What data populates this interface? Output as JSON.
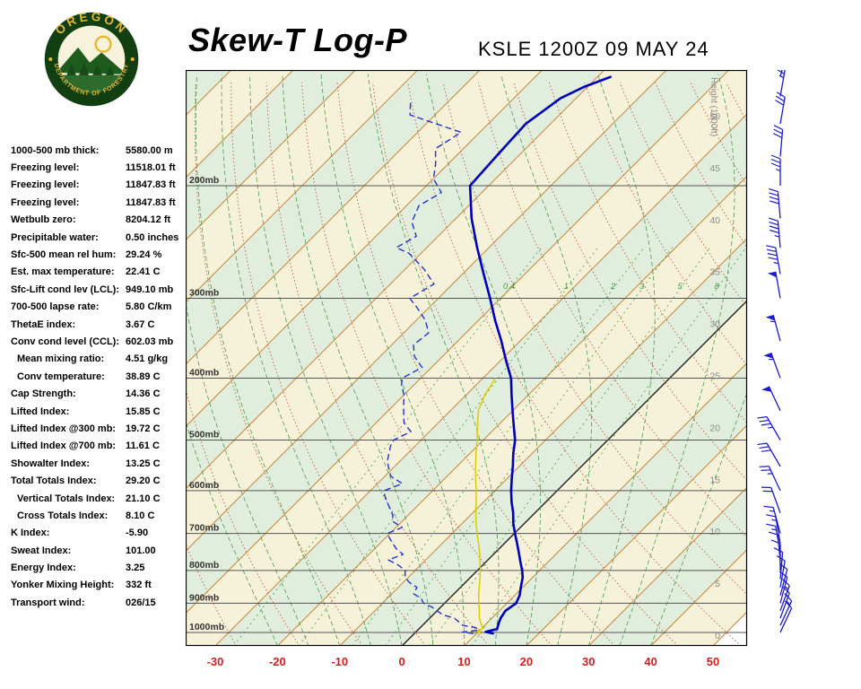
{
  "logo": {
    "org": "OREGON",
    "dept": "DEPARTMENT OF FORESTRY"
  },
  "header": {
    "title": "Skew-T Log-P",
    "station": "KSLE 1200Z 09 MAY 24"
  },
  "indices": [
    {
      "label": "1000-500 mb thick:",
      "value": "5580.00 m",
      "indent": false
    },
    {
      "label": "Freezing level:",
      "value": "11518.01 ft",
      "indent": false
    },
    {
      "label": "Freezing level:",
      "value": "11847.83 ft",
      "indent": false
    },
    {
      "label": "Freezing level:",
      "value": "11847.83 ft",
      "indent": false
    },
    {
      "label": "Wetbulb zero:",
      "value": "8204.12 ft",
      "indent": false
    },
    {
      "label": "Precipitable water:",
      "value": "0.50 inches",
      "indent": false
    },
    {
      "label": "Sfc-500 mean rel hum:",
      "value": "29.24 %",
      "indent": false
    },
    {
      "label": "Est. max temperature:",
      "value": "22.41 C",
      "indent": false
    },
    {
      "label": "Sfc-Lift cond lev (LCL):",
      "value": "949.10 mb",
      "indent": false
    },
    {
      "label": "700-500 lapse rate:",
      "value": "5.80 C/km",
      "indent": false
    },
    {
      "label": "ThetaE index:",
      "value": "3.67 C",
      "indent": false
    },
    {
      "label": "Conv cond level (CCL):",
      "value": "602.03 mb",
      "indent": false
    },
    {
      "label": "Mean mixing ratio:",
      "value": "4.51 g/kg",
      "indent": true
    },
    {
      "label": "Conv temperature:",
      "value": "38.89 C",
      "indent": true
    },
    {
      "label": "Cap Strength:",
      "value": "14.36 C",
      "indent": false
    },
    {
      "label": "Lifted Index:",
      "value": "15.85 C",
      "indent": false
    },
    {
      "label": "Lifted Index @300 mb:",
      "value": "19.72 C",
      "indent": false
    },
    {
      "label": "Lifted Index @700 mb:",
      "value": "11.61 C",
      "indent": false
    },
    {
      "label": "Showalter Index:",
      "value": "13.25 C",
      "indent": false
    },
    {
      "label": "Total Totals Index:",
      "value": "29.20 C",
      "indent": false
    },
    {
      "label": "Vertical Totals Index:",
      "value": "21.10 C",
      "indent": true
    },
    {
      "label": "Cross Totals Index:",
      "value": "8.10 C",
      "indent": true
    },
    {
      "label": "K Index:",
      "value": "-5.90",
      "indent": false
    },
    {
      "label": "Sweat Index:",
      "value": "101.00",
      "indent": false
    },
    {
      "label": "Energy Index:",
      "value": "3.25",
      "indent": false
    },
    {
      "label": "Yonker Mixing Height:",
      "value": "332 ft",
      "indent": false
    },
    {
      "label": "Transport wind:",
      "value": "026/15",
      "indent": false
    }
  ],
  "chart_data": {
    "type": "skewt-log-p",
    "station": "KSLE",
    "valid_time": "1200Z 09 MAY 24",
    "pressure_levels_mb": [
      200,
      300,
      400,
      500,
      600,
      700,
      800,
      900,
      1000
    ],
    "temp_axis_c": [
      -30,
      -20,
      -10,
      0,
      10,
      20,
      30,
      40,
      50
    ],
    "height_axis_kft": [
      0,
      5,
      10,
      15,
      20,
      25,
      30,
      35,
      40,
      45,
      50
    ],
    "height_axis_label": "Height (1000ft)",
    "mixing_ratio_lines_gkg": [
      0.4,
      1,
      2,
      3,
      5,
      8
    ],
    "isotherm_step_c": 10,
    "colors": {
      "band_cream": "#f6f2da",
      "band_green": "#e2eedd",
      "isotherm": "#c8863c",
      "isotherm_zero": "#222222",
      "dry_adiabat": "#bb5f3f",
      "moist_adiabat": "#4d9a4d",
      "mixing_ratio": "#3da03d",
      "isobar": "#555555",
      "temperature": "#0000bb",
      "dewpoint": "#2233cc",
      "wetbulb": "#ddcc00",
      "temp_labels": "#cc2222",
      "height_labels": "#8a8a8a",
      "pressure_labels": "#333333",
      "wind_barbs": "#1a1acc"
    },
    "temperature_profile": [
      [
        1004,
        12.8
      ],
      [
        998,
        11.2
      ],
      [
        988,
        12.6
      ],
      [
        970,
        12.0
      ],
      [
        950,
        11.4
      ],
      [
        925,
        11.0
      ],
      [
        900,
        11.5
      ],
      [
        875,
        10.8
      ],
      [
        850,
        9.7
      ],
      [
        820,
        8.4
      ],
      [
        800,
        7.2
      ],
      [
        775,
        5.5
      ],
      [
        750,
        3.8
      ],
      [
        725,
        2.0
      ],
      [
        700,
        0.1
      ],
      [
        675,
        -1.8
      ],
      [
        650,
        -3.5
      ],
      [
        625,
        -5.5
      ],
      [
        600,
        -7.4
      ],
      [
        575,
        -9.2
      ],
      [
        550,
        -11.0
      ],
      [
        525,
        -13.0
      ],
      [
        500,
        -14.9
      ],
      [
        475,
        -17.4
      ],
      [
        450,
        -20.0
      ],
      [
        425,
        -22.7
      ],
      [
        400,
        -25.5
      ],
      [
        375,
        -29.2
      ],
      [
        350,
        -33.0
      ],
      [
        325,
        -37.3
      ],
      [
        300,
        -41.7
      ],
      [
        275,
        -46.6
      ],
      [
        250,
        -51.9
      ],
      [
        225,
        -57.5
      ],
      [
        200,
        -63.0
      ],
      [
        180,
        -63.5
      ],
      [
        160,
        -64.0
      ],
      [
        146,
        -62.5
      ],
      [
        140,
        -60.5
      ],
      [
        135,
        -57.8
      ]
    ],
    "dewpoint_profile": [
      [
        1004,
        9.5
      ],
      [
        999,
        7.5
      ],
      [
        992,
        9.8
      ],
      [
        983,
        9.0
      ],
      [
        975,
        6.5
      ],
      [
        960,
        5.0
      ],
      [
        950,
        4.0
      ],
      [
        938,
        1.5
      ],
      [
        925,
        0.0
      ],
      [
        912,
        -1.5
      ],
      [
        900,
        -3.4
      ],
      [
        885,
        -4.5
      ],
      [
        870,
        -6.5
      ],
      [
        850,
        -7.0
      ],
      [
        835,
        -9.0
      ],
      [
        820,
        -10.5
      ],
      [
        800,
        -11.6
      ],
      [
        785,
        -13.5
      ],
      [
        770,
        -16.0
      ],
      [
        755,
        -14.5
      ],
      [
        740,
        -16.5
      ],
      [
        725,
        -18.0
      ],
      [
        710,
        -19.5
      ],
      [
        700,
        -20.4
      ],
      [
        685,
        -19.0
      ],
      [
        670,
        -21.5
      ],
      [
        655,
        -22.5
      ],
      [
        640,
        -24.0
      ],
      [
        625,
        -25.5
      ],
      [
        610,
        -27.0
      ],
      [
        600,
        -27.8
      ],
      [
        585,
        -26.0
      ],
      [
        570,
        -29.0
      ],
      [
        555,
        -30.5
      ],
      [
        540,
        -32.0
      ],
      [
        525,
        -33.0
      ],
      [
        510,
        -34.0
      ],
      [
        500,
        -34.4
      ],
      [
        485,
        -33.0
      ],
      [
        470,
        -35.5
      ],
      [
        455,
        -37.0
      ],
      [
        440,
        -38.5
      ],
      [
        425,
        -40.0
      ],
      [
        410,
        -42.0
      ],
      [
        400,
        -43.0
      ],
      [
        385,
        -41.5
      ],
      [
        370,
        -44.5
      ],
      [
        355,
        -46.5
      ],
      [
        340,
        -46.0
      ],
      [
        325,
        -48.5
      ],
      [
        310,
        -52.0
      ],
      [
        300,
        -54.6
      ],
      [
        285,
        -53.0
      ],
      [
        270,
        -57.0
      ],
      [
        255,
        -62.0
      ],
      [
        250,
        -64.9
      ],
      [
        240,
        -63.5
      ],
      [
        228,
        -66.5
      ],
      [
        215,
        -68.0
      ],
      [
        205,
        -66.5
      ],
      [
        195,
        -70.0
      ],
      [
        185,
        -72.0
      ],
      [
        175,
        -74.5
      ],
      [
        165,
        -73.0
      ],
      [
        155,
        -84.0
      ],
      [
        148,
        -86.0
      ]
    ],
    "wetbulb_profile": [
      [
        1004,
        10.8
      ],
      [
        995,
        9.5
      ],
      [
        985,
        10.2
      ],
      [
        970,
        9.2
      ],
      [
        950,
        8.0
      ],
      [
        925,
        6.8
      ],
      [
        900,
        5.5
      ],
      [
        875,
        4.2
      ],
      [
        850,
        3.0
      ],
      [
        825,
        1.8
      ],
      [
        800,
        0.5
      ],
      [
        775,
        -1.0
      ],
      [
        750,
        -2.5
      ],
      [
        725,
        -4.2
      ],
      [
        700,
        -6.0
      ],
      [
        675,
        -7.8
      ],
      [
        650,
        -9.5
      ],
      [
        625,
        -11.2
      ],
      [
        600,
        -13.0
      ],
      [
        575,
        -15.0
      ],
      [
        550,
        -17.0
      ],
      [
        525,
        -19.0
      ],
      [
        500,
        -21.0
      ],
      [
        475,
        -23.2
      ],
      [
        450,
        -25.5
      ],
      [
        425,
        -27.0
      ],
      [
        400,
        -28.0
      ]
    ],
    "winds": [
      [
        1000,
        25,
        10
      ],
      [
        975,
        25,
        15
      ],
      [
        950,
        20,
        15
      ],
      [
        925,
        20,
        15
      ],
      [
        900,
        15,
        10
      ],
      [
        875,
        15,
        10
      ],
      [
        850,
        10,
        10
      ],
      [
        825,
        5,
        10
      ],
      [
        800,
        360,
        10
      ],
      [
        775,
        355,
        10
      ],
      [
        750,
        350,
        15
      ],
      [
        725,
        350,
        15
      ],
      [
        700,
        345,
        15
      ],
      [
        650,
        340,
        20
      ],
      [
        600,
        335,
        25
      ],
      [
        550,
        330,
        30
      ],
      [
        500,
        330,
        35
      ],
      [
        450,
        335,
        50
      ],
      [
        400,
        340,
        55
      ],
      [
        350,
        345,
        55
      ],
      [
        300,
        350,
        50
      ],
      [
        275,
        350,
        45
      ],
      [
        250,
        355,
        45
      ],
      [
        225,
        355,
        40
      ],
      [
        200,
        360,
        35
      ],
      [
        180,
        5,
        30
      ],
      [
        160,
        10,
        30
      ],
      [
        145,
        10,
        25
      ],
      [
        135,
        15,
        25
      ]
    ]
  }
}
